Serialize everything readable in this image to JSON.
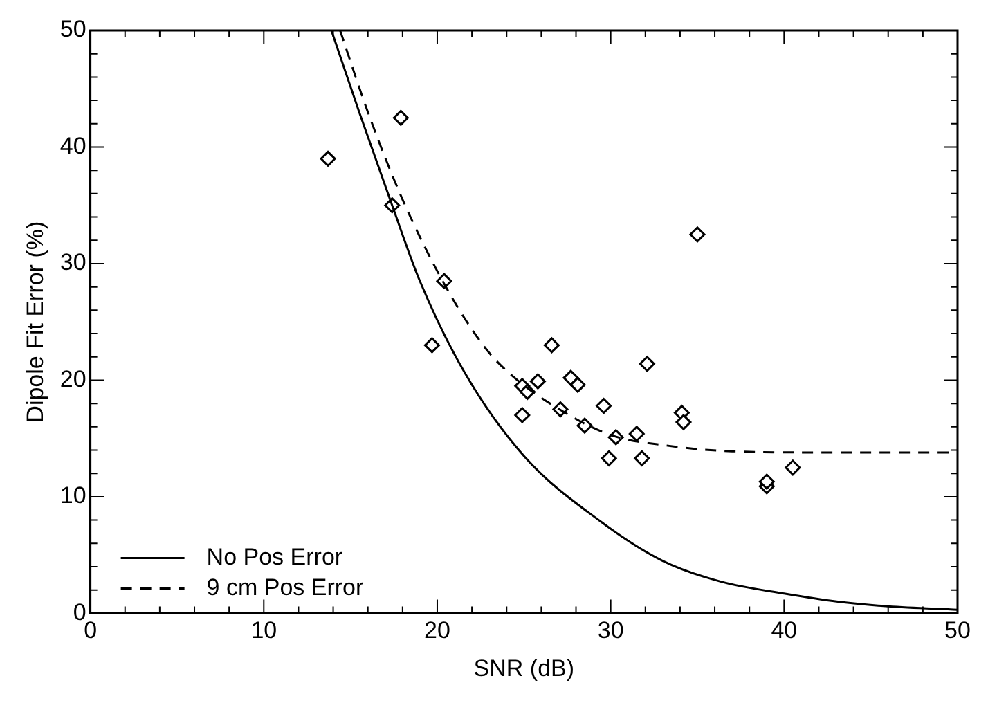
{
  "chart_data": {
    "type": "scatter",
    "xlabel": "SNR (dB)",
    "ylabel": "Dipole Fit Error (%)",
    "xlim": [
      0,
      50
    ],
    "ylim": [
      0,
      50
    ],
    "xticks": [
      0,
      {
        "value": 2,
        "label": null
      },
      {
        "value": 4,
        "label": null
      },
      {
        "value": 6,
        "label": null
      },
      {
        "value": 8,
        "label": null
      },
      10,
      {
        "value": 12,
        "label": null
      },
      {
        "value": 14,
        "label": null
      },
      {
        "value": 16,
        "label": null
      },
      {
        "value": 18,
        "label": null
      },
      20,
      {
        "value": 22,
        "label": null
      },
      {
        "value": 24,
        "label": null
      },
      {
        "value": 26,
        "label": null
      },
      {
        "value": 28,
        "label": null
      },
      30,
      {
        "value": 32,
        "label": null
      },
      {
        "value": 34,
        "label": null
      },
      {
        "value": 36,
        "label": null
      },
      {
        "value": 38,
        "label": null
      },
      40,
      {
        "value": 42,
        "label": null
      },
      {
        "value": 44,
        "label": null
      },
      {
        "value": 46,
        "label": null
      },
      {
        "value": 48,
        "label": null
      },
      50
    ],
    "yticks": [
      0,
      {
        "value": 2,
        "label": null
      },
      {
        "value": 4,
        "label": null
      },
      {
        "value": 6,
        "label": null
      },
      {
        "value": 8,
        "label": null
      },
      10,
      {
        "value": 12,
        "label": null
      },
      {
        "value": 14,
        "label": null
      },
      {
        "value": 16,
        "label": null
      },
      {
        "value": 18,
        "label": null
      },
      20,
      {
        "value": 22,
        "label": null
      },
      {
        "value": 24,
        "label": null
      },
      {
        "value": 26,
        "label": null
      },
      {
        "value": 28,
        "label": null
      },
      30,
      {
        "value": 32,
        "label": null
      },
      {
        "value": 34,
        "label": null
      },
      {
        "value": 36,
        "label": null
      },
      {
        "value": 38,
        "label": null
      },
      40,
      {
        "value": 42,
        "label": null
      },
      {
        "value": 44,
        "label": null
      },
      {
        "value": 46,
        "label": null
      },
      {
        "value": 48,
        "label": null
      },
      50
    ],
    "grid": false,
    "legend": "bottom left",
    "series": [
      {
        "name": "No Pos Error",
        "type": "line",
        "color": "#000000",
        "line_style": "solid",
        "marker": "none",
        "x": [
          13.9,
          15.5,
          17.4,
          19,
          21.6,
          25,
          29.4,
          33,
          36.4,
          40,
          43.1,
          46,
          50
        ],
        "values": [
          50,
          43,
          35,
          28.5,
          20.6,
          13.5,
          7.9,
          4.5,
          2.7,
          1.7,
          1,
          0.6,
          0.3
        ]
      },
      {
        "name": "9 cm Pos Error",
        "type": "line",
        "color": "#000000",
        "line_style": "dashed",
        "marker": "none",
        "x": [
          14.4,
          16,
          18,
          20.5,
          22.7,
          24,
          26.5,
          30,
          33.2,
          37,
          42,
          50
        ],
        "values": [
          50,
          43,
          35.5,
          28,
          22.9,
          20.8,
          18,
          15.3,
          14.4,
          13.9,
          13.8,
          13.8
        ]
      },
      {
        "color": "#000000",
        "marker": "diamond",
        "x": [
          13.7,
          17.9,
          17.4,
          20.4,
          19.7,
          26.6,
          35,
          32.1,
          24.9,
          25.8,
          25.2,
          27.7,
          28.1,
          24.9,
          27.1,
          29.6,
          28.5,
          30.3,
          31.5,
          34.1,
          34.2,
          29.9,
          31.8,
          39,
          39,
          40.5
        ],
        "values": [
          39,
          42.5,
          35,
          28.5,
          23,
          23,
          32.5,
          21.4,
          19.5,
          19.9,
          19,
          20.2,
          19.6,
          17,
          17.5,
          17.8,
          16.1,
          15.1,
          15.4,
          17.2,
          16.4,
          13.3,
          13.3,
          10.9,
          11.3,
          12.5
        ]
      }
    ]
  }
}
